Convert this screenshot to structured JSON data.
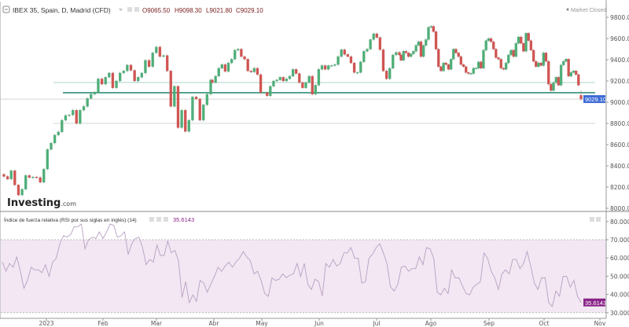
{
  "header": {
    "symbol_title": "IBEX 35, Spain, D, Madrid (CFD)",
    "open_label": "O",
    "open": "9065.50",
    "high_label": "H",
    "high": "9098.30",
    "low_label": "L",
    "low": "9021.80",
    "close_label": "C",
    "close": "9029.10",
    "market_status": "Market Closed"
  },
  "logo": "Investing.com",
  "rsi_panel": {
    "title": "Índice de fuerza relativa (RSI por sus siglas en inglés) (14)",
    "value": "35.6143"
  },
  "colors": {
    "up": "#4fae78",
    "down": "#cf5552",
    "level_line": "#2f8f7a",
    "price_label": "#3d6bd6",
    "rsi_line": "#b9a0c4",
    "rsi_band": "#f2e7f2",
    "rsi_label": "#8a2489"
  },
  "chart_data": [
    {
      "type": "candlestick",
      "title": "IBEX 35, Spain, D, Madrid (CFD)",
      "y_ticks": [
        "9800.00",
        "9600.00",
        "9400.00",
        "9200.00",
        "9000.00",
        "8800.00",
        "8600.00",
        "8400.00",
        "8200.00",
        "8000.00"
      ],
      "ylim": [
        8000,
        9800
      ],
      "x_ticks": [
        "2023",
        "Feb",
        "Mar",
        "Abr",
        "May",
        "Jun",
        "Jul",
        "Ago",
        "Sep",
        "Oct",
        "Nov"
      ],
      "current_price": "9029.10",
      "horizontal_lines": [
        9185,
        9089,
        8800
      ],
      "first_open": 8320,
      "last_candle": {
        "open": 9065.5,
        "high": 9098.3,
        "low": 9021.8,
        "close": 9029.1
      },
      "close": [
        8300,
        8275,
        8355,
        8220,
        8125,
        8180,
        8310,
        8290,
        8295,
        8290,
        8245,
        8370,
        8555,
        8615,
        8690,
        8720,
        8830,
        8875,
        8880,
        8925,
        8800,
        8925,
        8960,
        9035,
        9075,
        9095,
        9220,
        9170,
        9235,
        9275,
        9135,
        9200,
        9275,
        9295,
        9350,
        9300,
        9200,
        9235,
        9275,
        9395,
        9335,
        9465,
        9520,
        9430,
        9440,
        9295,
        8960,
        9150,
        8760,
        8925,
        8725,
        8830,
        9050,
        9030,
        8830,
        8975,
        9075,
        9210,
        9185,
        9245,
        9320,
        9355,
        9290,
        9370,
        9405,
        9490,
        9500,
        9430,
        9405,
        9295,
        9285,
        9320,
        9260,
        9090,
        9090,
        9060,
        9150,
        9200,
        9210,
        9235,
        9200,
        9220,
        9245,
        9310,
        9270,
        9185,
        9135,
        9185,
        9245,
        9075,
        9160,
        9310,
        9345,
        9310,
        9345,
        9345,
        9355,
        9430,
        9495,
        9450,
        9430,
        9370,
        9280,
        9280,
        9380,
        9480,
        9500,
        9590,
        9645,
        9610,
        9495,
        9295,
        9220,
        9320,
        9445,
        9470,
        9445,
        9395,
        9480,
        9465,
        9430,
        9455,
        9480,
        9535,
        9570,
        9430,
        9535,
        9590,
        9705,
        9715,
        9665,
        9500,
        9335,
        9295,
        9370,
        9355,
        9310,
        9405,
        9500,
        9465,
        9430,
        9355,
        9335,
        9280,
        9270,
        9270,
        9320,
        9320,
        9380,
        9320,
        9490,
        9580,
        9600,
        9570,
        9500,
        9420,
        9405,
        9320,
        9310,
        9370,
        9445,
        9490,
        9430,
        9555,
        9615,
        9555,
        9480,
        9650,
        9580,
        9490,
        9385,
        9335,
        9370,
        9345,
        9465,
        9385,
        9170,
        9110,
        9185,
        9235,
        9160,
        9350,
        9385,
        9405,
        9245,
        9280,
        9295,
        9260,
        9160,
        9029.1
      ]
    },
    {
      "type": "line",
      "title": "Índice de fuerza relativa (RSI por sus siglas en inglés) (14)",
      "y_ticks": [
        "80.0000",
        "70.0000",
        "60.0000",
        "50.0000",
        "40.0000",
        "30.0000"
      ],
      "ylim": [
        27,
        84
      ],
      "band": [
        30,
        70
      ],
      "current_value": "35.6143",
      "values": [
        57.8,
        52.7,
        57,
        54.9,
        60.6,
        52.7,
        43.4,
        47.7,
        54.9,
        53.5,
        53.5,
        52,
        56.3,
        49.9,
        57.8,
        59.9,
        67.8,
        72.2,
        71.5,
        72.9,
        77.2,
        77.2,
        78.6,
        65,
        70,
        71.4,
        70.7,
        74.3,
        70.7,
        74.3,
        78.6,
        77.9,
        71.4,
        72.2,
        74.3,
        62,
        67.8,
        70.7,
        71.4,
        65.7,
        56.3,
        59.2,
        57.8,
        67.1,
        61.4,
        61.4,
        69.3,
        62.8,
        64.2,
        58.5,
        38.3,
        47,
        35.5,
        39.8,
        36.2,
        47.7,
        46.3,
        41.2,
        45.6,
        49.9,
        54.9,
        52.7,
        55.6,
        57.8,
        54.9,
        57.8,
        59.9,
        63.5,
        60.6,
        58.5,
        51.3,
        52.7,
        47.7,
        40.5,
        39,
        49.1,
        47.7,
        48.4,
        51.3,
        49.1,
        50.6,
        51.3,
        57,
        49.9,
        57,
        45.5,
        42.7,
        48.4,
        47,
        39.1,
        57,
        54.9,
        59.2,
        55.6,
        57,
        62.8,
        62.8,
        65.7,
        59.9,
        59.9,
        46.3,
        47,
        59.9,
        62.1,
        65.7,
        67.8,
        62.8,
        57,
        44.1,
        41.9,
        45.5,
        54.9,
        55.6,
        52.7,
        54.2,
        54.2,
        60.6,
        56.3,
        65.7,
        65,
        59.9,
        41.2,
        39.8,
        43.4,
        40.5,
        53.5,
        49.1,
        49.1,
        44.8,
        40.5,
        39.8,
        44.1,
        45.5,
        47,
        62.8,
        59.9,
        52.7,
        49.1,
        42.7,
        51.3,
        53.5,
        51.3,
        59.2,
        59.2,
        54.2,
        57,
        63.5,
        55.6,
        46.3,
        42.7,
        49.1,
        49.1,
        35.5,
        33.3,
        41.9,
        39.1,
        49.9,
        49.9,
        44.1,
        47.7,
        39.1,
        35.6143
      ]
    }
  ]
}
